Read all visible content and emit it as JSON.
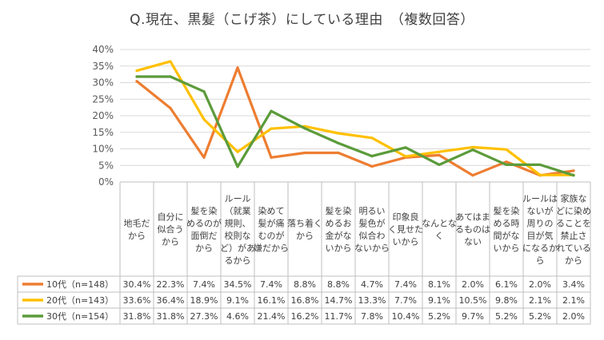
{
  "title": "Q.現在、黒髪（こげ茶）にしている理由　（複数回答）",
  "chart_data": {
    "type": "line",
    "title": "Q.現在、黒髪（こげ茶）にしている理由　（複数回答）",
    "ylim": [
      0,
      40
    ],
    "yticks": [
      "0%",
      "5%",
      "10%",
      "15%",
      "20%",
      "25%",
      "30%",
      "35%",
      "40%"
    ],
    "grid": true,
    "legend_placement": "data-table-left",
    "categories": [
      [
        "地毛だ",
        "から"
      ],
      [
        "自分に",
        "似合う",
        "から"
      ],
      [
        "髪を染",
        "めるのが",
        "面倒だ",
        "から"
      ],
      [
        "ルール",
        "（就業",
        "規則、",
        "校則な",
        "ど）があ",
        "るから"
      ],
      [
        "染めて",
        "髪が痛",
        "むのが",
        "嫌だから"
      ],
      [
        "落ち着く",
        "から"
      ],
      [
        "髪を染",
        "めるお",
        "金がな",
        "いから"
      ],
      [
        "明るい",
        "髪色が",
        "似合わ",
        "ないから"
      ],
      [
        "印象良",
        "く見せた",
        "いから"
      ],
      [
        "なんとな",
        "く"
      ],
      [
        "あてはま",
        "るものは",
        "ない"
      ],
      [
        "髪を染",
        "める時",
        "間がな",
        "いから"
      ],
      [
        "ルールは",
        "ないが",
        "周りの",
        "目が気",
        "になるか",
        "ら"
      ],
      [
        "家族な",
        "どに染め",
        "ることを",
        "禁止さ",
        "れている",
        "から"
      ]
    ],
    "series": [
      {
        "name": "10代（n=148）",
        "color": "#ED7D31",
        "values": [
          30.4,
          22.3,
          7.4,
          34.5,
          7.4,
          8.8,
          8.8,
          4.7,
          7.4,
          8.1,
          2.0,
          6.1,
          2.0,
          3.4
        ],
        "labels": [
          "30.4%",
          "22.3%",
          "7.4%",
          "34.5%",
          "7.4%",
          "8.8%",
          "8.8%",
          "4.7%",
          "7.4%",
          "8.1%",
          "2.0%",
          "6.1%",
          "2.0%",
          "3.4%"
        ]
      },
      {
        "name": "20代（n=143）",
        "color": "#FFC000",
        "values": [
          33.6,
          36.4,
          18.9,
          9.1,
          16.1,
          16.8,
          14.7,
          13.3,
          7.7,
          9.1,
          10.5,
          9.8,
          2.1,
          2.1
        ],
        "labels": [
          "33.6%",
          "36.4%",
          "18.9%",
          "9.1%",
          "16.1%",
          "16.8%",
          "14.7%",
          "13.3%",
          "7.7%",
          "9.1%",
          "10.5%",
          "9.8%",
          "2.1%",
          "2.1%"
        ]
      },
      {
        "name": "30代（n=154）",
        "color": "#5B9B3A",
        "values": [
          31.8,
          31.8,
          27.3,
          4.6,
          21.4,
          16.2,
          11.7,
          7.8,
          10.4,
          5.2,
          9.7,
          5.2,
          5.2,
          2.0
        ],
        "labels": [
          "31.8%",
          "31.8%",
          "27.3%",
          "4.6%",
          "21.4%",
          "16.2%",
          "11.7%",
          "7.8%",
          "10.4%",
          "5.2%",
          "9.7%",
          "5.2%",
          "5.2%",
          "2.0%"
        ]
      }
    ]
  }
}
